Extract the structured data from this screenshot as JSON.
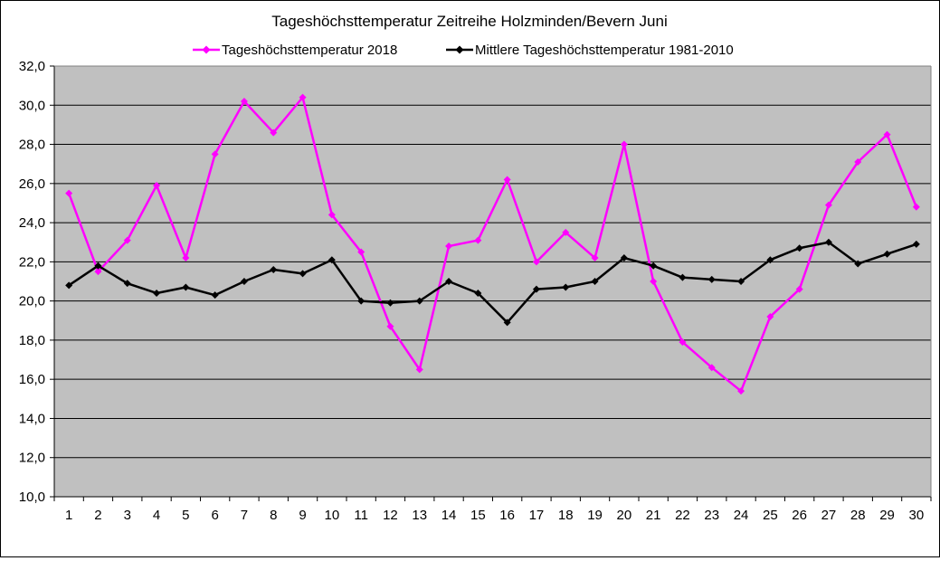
{
  "chart_data": {
    "type": "line",
    "title": "Tageshöchsttemperatur Zeitreihe Holzminden/Bevern  Juni",
    "xlabel": "",
    "ylabel": "",
    "categories": [
      "1",
      "2",
      "3",
      "4",
      "5",
      "6",
      "7",
      "8",
      "9",
      "10",
      "11",
      "12",
      "13",
      "14",
      "15",
      "16",
      "17",
      "18",
      "19",
      "20",
      "21",
      "22",
      "23",
      "24",
      "25",
      "26",
      "27",
      "28",
      "29",
      "30"
    ],
    "ylim": [
      10,
      32
    ],
    "yticks": [
      "10,0",
      "12,0",
      "14,0",
      "16,0",
      "18,0",
      "20,0",
      "22,0",
      "24,0",
      "26,0",
      "28,0",
      "30,0",
      "32,0"
    ],
    "ytick_values": [
      10,
      12,
      14,
      16,
      18,
      20,
      22,
      24,
      26,
      28,
      30,
      32
    ],
    "grid": true,
    "legend_position": "top",
    "plot_background": "#c0c0c0",
    "series": [
      {
        "name": "Tageshöchsttemperatur 2018",
        "color": "#ff00ff",
        "marker": "diamond",
        "values": [
          25.5,
          21.5,
          23.1,
          25.9,
          22.2,
          27.5,
          30.2,
          28.6,
          30.4,
          24.4,
          22.5,
          18.7,
          16.5,
          22.8,
          23.1,
          26.2,
          22.0,
          23.5,
          22.2,
          28.0,
          21.0,
          17.9,
          16.6,
          15.4,
          19.2,
          20.6,
          24.9,
          27.1,
          28.5,
          24.8
        ]
      },
      {
        "name": "Mittlere Tageshöchsttemperatur 1981-2010",
        "color": "#000000",
        "marker": "diamond",
        "values": [
          20.8,
          21.8,
          20.9,
          20.4,
          20.7,
          20.3,
          21.0,
          21.6,
          21.4,
          22.1,
          20.0,
          19.9,
          20.0,
          21.0,
          20.4,
          18.9,
          20.6,
          20.7,
          21.0,
          22.2,
          21.8,
          21.2,
          21.1,
          21.0,
          22.1,
          22.7,
          23.0,
          21.9,
          22.4,
          22.9
        ]
      }
    ]
  }
}
